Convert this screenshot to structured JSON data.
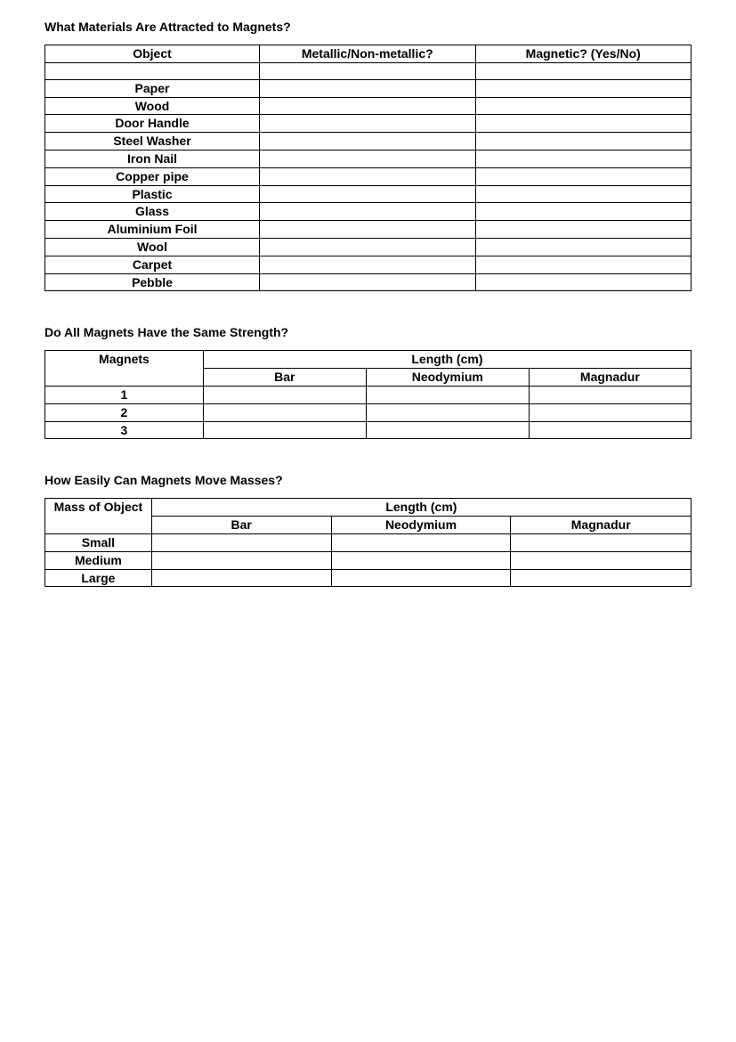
{
  "section1": {
    "heading": "What Materials Are Attracted to Magnets?",
    "columns": [
      "Object",
      "Metallic/Non-metallic?",
      "Magnetic? (Yes/No)"
    ],
    "rows": [
      [
        "",
        "",
        ""
      ],
      [
        "Paper",
        "",
        ""
      ],
      [
        "Wood",
        "",
        ""
      ],
      [
        "Door Handle",
        "",
        ""
      ],
      [
        "Steel Washer",
        "",
        ""
      ],
      [
        "Iron Nail",
        "",
        ""
      ],
      [
        "Copper pipe",
        "",
        ""
      ],
      [
        "Plastic",
        "",
        ""
      ],
      [
        "Glass",
        "",
        ""
      ],
      [
        "Aluminium Foil",
        "",
        ""
      ],
      [
        "Wool",
        "",
        ""
      ],
      [
        "Carpet",
        "",
        ""
      ],
      [
        "Pebble",
        "",
        ""
      ]
    ]
  },
  "section2": {
    "heading": "Do All Magnets Have the Same Strength?",
    "header_row1": {
      "left": "Magnets",
      "span": "Length (cm)"
    },
    "header_row2": [
      "Bar",
      "Neodymium",
      "Magnadur"
    ],
    "rows": [
      [
        "1",
        "",
        "",
        ""
      ],
      [
        "2",
        "",
        "",
        ""
      ],
      [
        "3",
        "",
        "",
        ""
      ]
    ]
  },
  "section3": {
    "heading": "How Easily Can Magnets Move Masses?",
    "header_row1": {
      "left": "Mass of Object",
      "span": "Length (cm)"
    },
    "header_row2": [
      "Bar",
      "Neodymium",
      "Magnadur"
    ],
    "rows": [
      [
        "Small",
        "",
        "",
        ""
      ],
      [
        "Medium",
        "",
        "",
        ""
      ],
      [
        "Large",
        "",
        "",
        ""
      ]
    ]
  },
  "styles": {
    "font_family": "Comic Sans MS",
    "heading_fontsize": 14,
    "cell_fontsize": 14,
    "text_color": "#000000",
    "background_color": "#ffffff",
    "border_color": "#000000"
  }
}
